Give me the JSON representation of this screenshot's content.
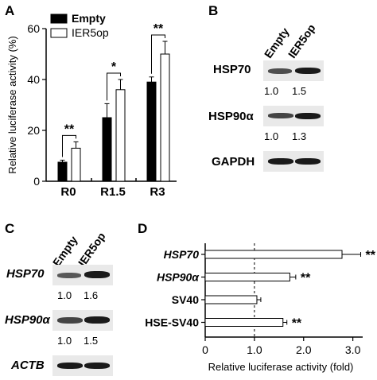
{
  "panels": {
    "A": "A",
    "B": "B",
    "C": "C",
    "D": "D"
  },
  "chart_data": [
    {
      "panel": "A",
      "type": "bar",
      "ylabel": "Relative luciferase activity (%)",
      "ylim": [
        0,
        60
      ],
      "yticks": [
        "0",
        "20",
        "40",
        "60"
      ],
      "categories": [
        "R0",
        "R1.5",
        "R3"
      ],
      "series": [
        {
          "name": "Empty",
          "color": "#000000",
          "values": [
            7.5,
            25,
            39
          ],
          "errors": [
            0.8,
            5.5,
            2
          ]
        },
        {
          "name": "IER5op",
          "color": "#ffffff",
          "values": [
            13,
            36,
            50
          ],
          "errors": [
            2.5,
            4,
            5
          ]
        }
      ],
      "significance": [
        "**",
        "*",
        "**"
      ],
      "legend": "top-left"
    },
    {
      "panel": "D",
      "type": "bar",
      "orientation": "horizontal",
      "xlabel": "Relative luciferase activity (fold)",
      "xlim": [
        0,
        3.2
      ],
      "xticks": [
        "0",
        "1.0",
        "2.0",
        "3.0"
      ],
      "reference_line": 1.0,
      "categories": [
        "HSP70",
        "HSP90α",
        "SV40",
        "HSE-SV40"
      ],
      "italic_categories": [
        true,
        true,
        false,
        false
      ],
      "values": [
        2.78,
        1.72,
        1.05,
        1.58
      ],
      "errors": [
        0.38,
        0.12,
        0.08,
        0.08
      ],
      "significance": [
        "**",
        "**",
        "",
        "**"
      ]
    }
  ],
  "blot_B": {
    "lanes": [
      "Empty",
      "IER5op"
    ],
    "rows": [
      {
        "label": "HSP70",
        "ratios": [
          "1.0",
          "1.5"
        ]
      },
      {
        "label": "HSP90α",
        "ratios": [
          "1.0",
          "1.3"
        ]
      },
      {
        "label": "GAPDH",
        "ratios": []
      }
    ]
  },
  "blot_C": {
    "lanes": [
      "Empty",
      "IER5op"
    ],
    "rows": [
      {
        "label": "HSP70",
        "ratios": [
          "1.0",
          "1.6"
        ]
      },
      {
        "label": "HSP90α",
        "ratios": [
          "1.0",
          "1.5"
        ]
      },
      {
        "label": "ACTB",
        "ratios": []
      }
    ]
  }
}
